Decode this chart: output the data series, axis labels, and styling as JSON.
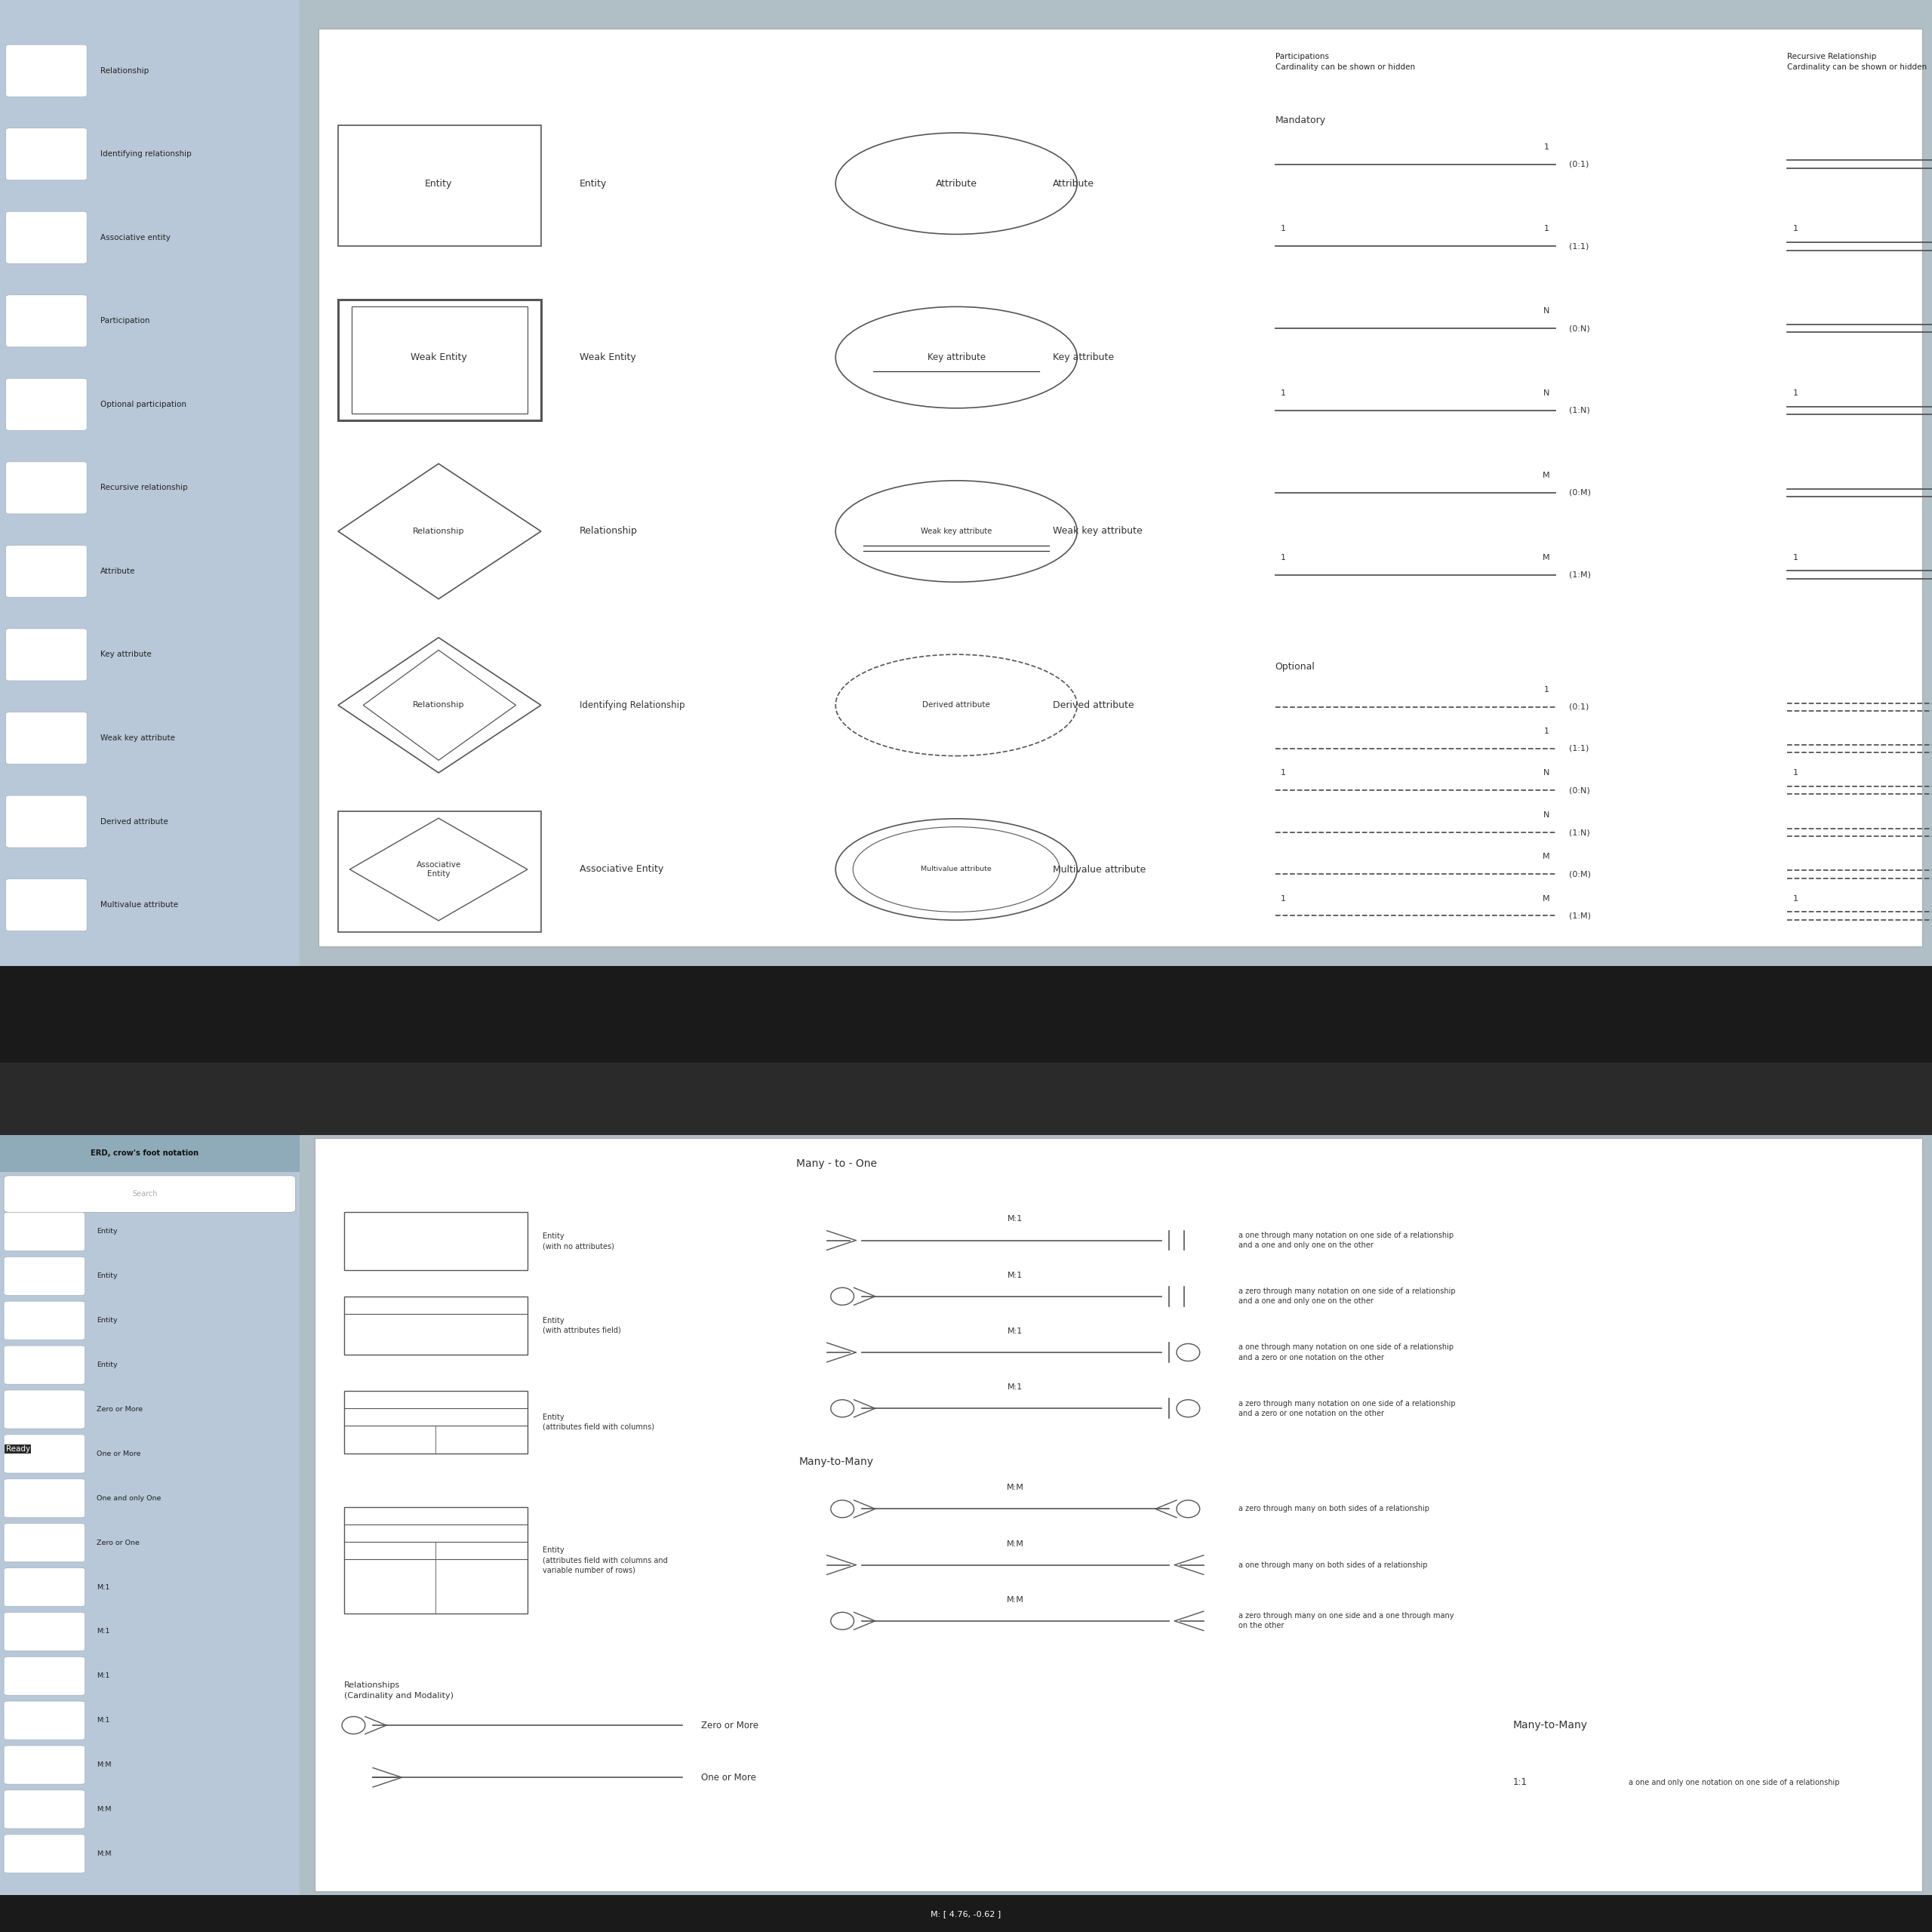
{
  "bg_color": "#b0bec5",
  "sidebar_color": "#b8c8d8",
  "panel_bg": "#ffffff",
  "sidebar_items": [
    "Relationship",
    "Identifying relationship",
    "Associative entity",
    "Participation",
    "Optional participation",
    "Recursive relationship",
    "Attribute",
    "Key attribute",
    "Weak key attribute",
    "Derived attribute",
    "Multivalue attribute"
  ],
  "part_title1": "Participations\nCardinality can be shown or hidden",
  "part_title2": "Recursive Relationship\nCardinality can be shown or hidden",
  "mandatory_label": "Mandatory",
  "optional_label": "Optional",
  "bottom_title": "ERD, crow's foot notation",
  "status_text": "M: [ 4.76, -0.62 ]",
  "ready_text": "Ready",
  "many_to_one_title": "Many - to - One",
  "many_to_many_title1": "Many-to-Many",
  "many_to_many_title2": "Many-to-Many",
  "bot_sidebar_items": [
    "Entity",
    "Entity",
    "Entity",
    "Entity",
    "Zero or More",
    "One or More",
    "One and only One",
    "Zero or One",
    "M:1",
    "M:1",
    "M:1",
    "M:1",
    "M:M",
    "M:M",
    "M:M"
  ]
}
